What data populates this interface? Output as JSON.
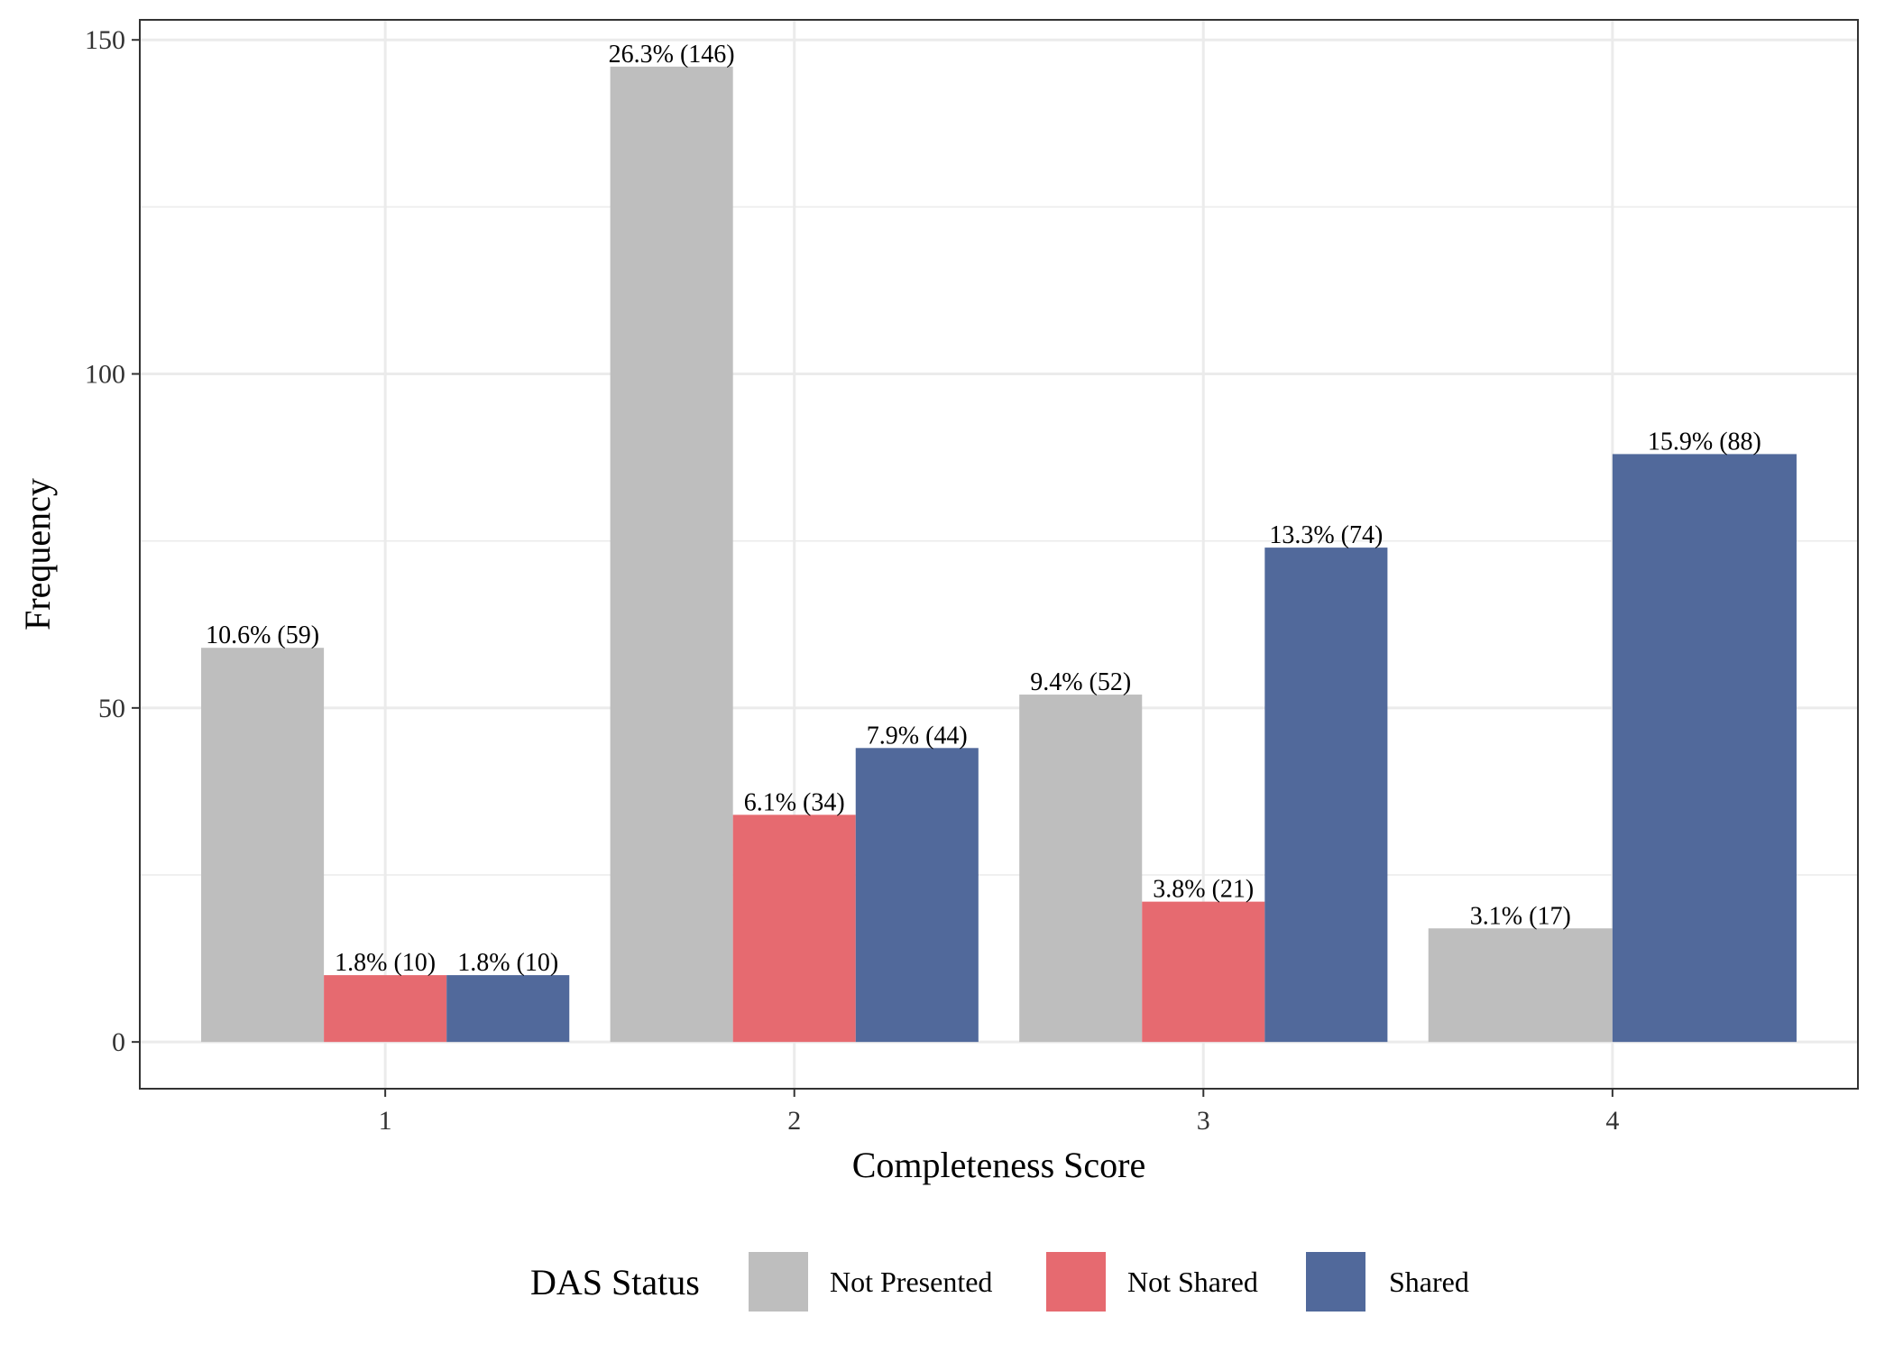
{
  "chart_data": {
    "type": "bar",
    "xlabel": "Completeness Score",
    "ylabel": "Frequency",
    "categories": [
      "1",
      "2",
      "3",
      "4"
    ],
    "ylim": [
      -7,
      153
    ],
    "yticks": [
      0,
      50,
      100,
      150
    ],
    "grid": true,
    "legend": {
      "title": "DAS Status",
      "position": "bottom"
    },
    "series": [
      {
        "name": "Not Presented",
        "color": "#bebebe",
        "values": [
          59,
          146,
          52,
          17
        ],
        "labels": [
          "10.6% (59)",
          "26.3% (146)",
          "9.4% (52)",
          "3.1% (17)"
        ]
      },
      {
        "name": "Not Shared",
        "color": "#e66a70",
        "values": [
          10,
          34,
          21,
          null
        ],
        "labels": [
          "1.8% (10)",
          "6.1% (34)",
          "3.8% (21)",
          null
        ]
      },
      {
        "name": "Shared",
        "color": "#51699b",
        "values": [
          10,
          44,
          74,
          88
        ],
        "labels": [
          "1.8% (10)",
          "7.9% (44)",
          "13.3% (74)",
          "15.9% (88)"
        ]
      }
    ]
  }
}
